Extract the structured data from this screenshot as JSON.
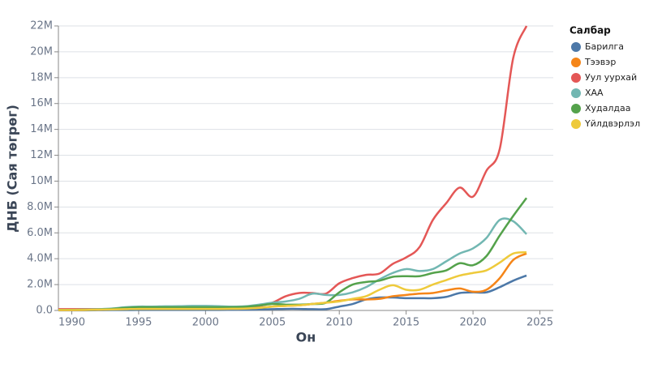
{
  "chart_data": {
    "type": "line",
    "x_label": "Он",
    "y_label": "ДНБ (Сая төгрөг)",
    "legend_title": "Салбар",
    "legend_position": "right",
    "grid": true,
    "x": [
      1989,
      1990,
      1991,
      1992,
      1993,
      1994,
      1995,
      1996,
      1997,
      1998,
      1999,
      2000,
      2001,
      2002,
      2003,
      2004,
      2005,
      2006,
      2007,
      2008,
      2009,
      2010,
      2011,
      2012,
      2013,
      2014,
      2015,
      2016,
      2017,
      2018,
      2019,
      2020,
      2021,
      2022,
      2023,
      2024
    ],
    "xlim": [
      1989,
      2026
    ],
    "xticks": [
      1990,
      1995,
      2000,
      2005,
      2010,
      2015,
      2020,
      2025
    ],
    "ylim": [
      0,
      22000000
    ],
    "yticks": [
      {
        "value": 0,
        "label": "0.0"
      },
      {
        "value": 2000000,
        "label": "2.0M"
      },
      {
        "value": 4000000,
        "label": "4.0M"
      },
      {
        "value": 6000000,
        "label": "6.0M"
      },
      {
        "value": 8000000,
        "label": "8.0M"
      },
      {
        "value": 10000000,
        "label": "10M"
      },
      {
        "value": 12000000,
        "label": "12M"
      },
      {
        "value": 14000000,
        "label": "14M"
      },
      {
        "value": 16000000,
        "label": "16M"
      },
      {
        "value": 18000000,
        "label": "18M"
      },
      {
        "value": 20000000,
        "label": "20M"
      },
      {
        "value": 22000000,
        "label": "22M"
      }
    ],
    "series": [
      {
        "name": "Барилга",
        "color": "#4c78a8",
        "values": [
          10000,
          10000,
          10000,
          20000,
          30000,
          30000,
          40000,
          40000,
          40000,
          40000,
          40000,
          40000,
          40000,
          50000,
          60000,
          80000,
          100000,
          120000,
          120000,
          100000,
          100000,
          300000,
          500000,
          850000,
          1000000,
          1000000,
          950000,
          950000,
          950000,
          1050000,
          1350000,
          1400000,
          1400000,
          1800000,
          2300000,
          2700000
        ]
      },
      {
        "name": "Тээвэр",
        "color": "#f58518",
        "values": [
          30000,
          30000,
          40000,
          60000,
          80000,
          100000,
          120000,
          120000,
          120000,
          120000,
          120000,
          120000,
          120000,
          130000,
          150000,
          200000,
          300000,
          350000,
          400000,
          500000,
          600000,
          750000,
          850000,
          850000,
          900000,
          1100000,
          1200000,
          1300000,
          1350000,
          1550000,
          1700000,
          1450000,
          1600000,
          2500000,
          3900000,
          4400000
        ]
      },
      {
        "name": "Уул уурхай",
        "color": "#e45756",
        "values": [
          100000,
          100000,
          100000,
          100000,
          120000,
          150000,
          200000,
          200000,
          200000,
          180000,
          170000,
          170000,
          180000,
          200000,
          250000,
          350000,
          600000,
          1100000,
          1350000,
          1350000,
          1300000,
          2100000,
          2500000,
          2750000,
          2850000,
          3600000,
          4100000,
          4900000,
          7000000,
          8300000,
          9500000,
          8800000,
          10800000,
          12500000,
          19500000,
          22000000
        ]
      },
      {
        "name": "ХАА",
        "color": "#72b7b2",
        "values": [
          50000,
          50000,
          60000,
          100000,
          150000,
          250000,
          300000,
          300000,
          320000,
          330000,
          350000,
          350000,
          330000,
          300000,
          330000,
          450000,
          600000,
          700000,
          900000,
          1300000,
          1200000,
          1200000,
          1400000,
          1800000,
          2400000,
          2900000,
          3200000,
          3050000,
          3200000,
          3800000,
          4400000,
          4800000,
          5600000,
          7000000,
          6900000,
          5900000
        ]
      },
      {
        "name": "Худалдаа",
        "color": "#54a24b",
        "values": [
          50000,
          50000,
          60000,
          80000,
          120000,
          200000,
          250000,
          250000,
          250000,
          250000,
          250000,
          250000,
          250000,
          250000,
          280000,
          380000,
          500000,
          450000,
          450000,
          500000,
          600000,
          1400000,
          2000000,
          2200000,
          2300000,
          2600000,
          2650000,
          2650000,
          2900000,
          3100000,
          3650000,
          3500000,
          4200000,
          5800000,
          7300000,
          8700000
        ]
      },
      {
        "name": "Үйлдвэрлэл",
        "color": "#eeca3b",
        "values": [
          30000,
          30000,
          40000,
          60000,
          80000,
          100000,
          120000,
          120000,
          120000,
          120000,
          120000,
          120000,
          120000,
          130000,
          150000,
          200000,
          300000,
          350000,
          400000,
          500000,
          600000,
          700000,
          900000,
          1100000,
          1600000,
          1950000,
          1600000,
          1600000,
          2000000,
          2350000,
          2700000,
          2900000,
          3100000,
          3700000,
          4400000,
          4500000
        ]
      }
    ]
  }
}
